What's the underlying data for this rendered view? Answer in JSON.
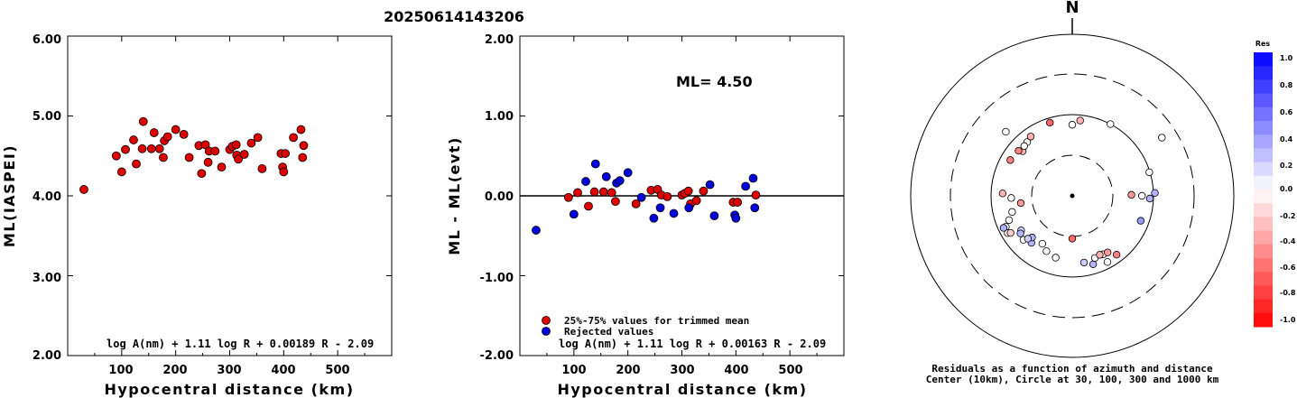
{
  "title": "20250614143206",
  "chart_data": [
    {
      "type": "scatter",
      "name": "ml-vs-distance",
      "xlabel": "Hypocentral distance (km)",
      "ylabel": "ML(IASPEI)",
      "xlim": [
        0,
        600
      ],
      "ylim": [
        2.0,
        6.0
      ],
      "xticks": [
        "100",
        "200",
        "300",
        "400",
        "500"
      ],
      "yticks": [
        "2.00",
        "3.00",
        "4.00",
        "5.00",
        "6.00"
      ],
      "formula": "log A(nm) + 1.11 log R + 0.00189 R - 2.09",
      "points": [
        [
          30,
          4.08
        ],
        [
          90,
          4.5
        ],
        [
          100,
          4.3
        ],
        [
          107,
          4.58
        ],
        [
          122,
          4.7
        ],
        [
          127,
          4.4
        ],
        [
          138,
          4.59
        ],
        [
          140,
          4.93
        ],
        [
          155,
          4.59
        ],
        [
          160,
          4.79
        ],
        [
          170,
          4.59
        ],
        [
          177,
          4.48
        ],
        [
          179,
          4.69
        ],
        [
          185,
          4.74
        ],
        [
          200,
          4.83
        ],
        [
          215,
          4.77
        ],
        [
          225,
          4.48
        ],
        [
          243,
          4.63
        ],
        [
          248,
          4.28
        ],
        [
          255,
          4.64
        ],
        [
          260,
          4.42
        ],
        [
          262,
          4.56
        ],
        [
          273,
          4.56
        ],
        [
          285,
          4.36
        ],
        [
          300,
          4.58
        ],
        [
          305,
          4.62
        ],
        [
          312,
          4.64
        ],
        [
          313,
          4.51
        ],
        [
          316,
          4.46
        ],
        [
          327,
          4.52
        ],
        [
          340,
          4.66
        ],
        [
          352,
          4.73
        ],
        [
          360,
          4.34
        ],
        [
          395,
          4.53
        ],
        [
          398,
          4.36
        ],
        [
          400,
          4.3
        ],
        [
          403,
          4.53
        ],
        [
          418,
          4.73
        ],
        [
          432,
          4.83
        ],
        [
          435,
          4.48
        ],
        [
          437,
          4.63
        ]
      ]
    },
    {
      "type": "scatter",
      "name": "residual-vs-distance",
      "xlabel": "Hypocentral distance (km)",
      "ylabel": "ML - ML(evt)",
      "xlim": [
        0,
        600
      ],
      "ylim": [
        -2.0,
        2.0
      ],
      "xticks": [
        "100",
        "200",
        "300",
        "400",
        "500"
      ],
      "yticks": [
        "-2.00",
        "-1.00",
        "0.00",
        "1.00",
        "2.00"
      ],
      "annotation": "ML= 4.50",
      "formula": "log A(nm) + 1.11 log R + 0.00163 R - 2.09",
      "legend": [
        {
          "label": "25%-75% values for trimmed mean",
          "color": "#dd0000"
        },
        {
          "label": "Rejected values",
          "color": "#0000dd"
        }
      ],
      "series": [
        {
          "color": "#dd0000",
          "points": [
            [
              90,
              -0.02
            ],
            [
              107,
              0.04
            ],
            [
              127,
              -0.13
            ],
            [
              138,
              0.05
            ],
            [
              155,
              0.05
            ],
            [
              170,
              0.04
            ],
            [
              177,
              -0.07
            ],
            [
              215,
              -0.1
            ],
            [
              243,
              0.07
            ],
            [
              255,
              0.08
            ],
            [
              262,
              0.01
            ],
            [
              273,
              -0.01
            ],
            [
              300,
              0.01
            ],
            [
              305,
              0.03
            ],
            [
              312,
              0.06
            ],
            [
              316,
              -0.1
            ],
            [
              327,
              -0.06
            ],
            [
              340,
              0.06
            ],
            [
              395,
              -0.08
            ],
            [
              403,
              -0.08
            ],
            [
              437,
              0.01
            ]
          ]
        },
        {
          "color": "#0000dd",
          "points": [
            [
              30,
              -0.43
            ],
            [
              100,
              -0.23
            ],
            [
              122,
              0.18
            ],
            [
              140,
              0.4
            ],
            [
              160,
              0.24
            ],
            [
              179,
              0.16
            ],
            [
              185,
              0.19
            ],
            [
              200,
              0.29
            ],
            [
              225,
              -0.02
            ],
            [
              248,
              -0.28
            ],
            [
              260,
              -0.15
            ],
            [
              285,
              -0.22
            ],
            [
              313,
              -0.15
            ],
            [
              352,
              0.14
            ],
            [
              360,
              -0.25
            ],
            [
              398,
              -0.24
            ],
            [
              400,
              -0.28
            ],
            [
              418,
              0.12
            ],
            [
              432,
              0.22
            ],
            [
              435,
              -0.15
            ]
          ]
        }
      ]
    },
    {
      "type": "scatter",
      "name": "azimuth-distance-residuals",
      "north_label": "N",
      "caption_line1": "Residuals as a function of azimuth and distance",
      "caption_line2": "Center (10km), Circle at 30, 100, 300 and 1000 km",
      "rings_km": [
        30,
        100,
        300,
        1000
      ],
      "points": [
        [
          312,
          65,
          -0.3
        ],
        [
          310,
          72,
          -0.5
        ],
        [
          300,
          75,
          -0.5
        ],
        [
          320,
          72,
          0.0
        ],
        [
          325,
          77,
          -0.3
        ],
        [
          343,
          87,
          -0.6
        ],
        [
          6,
          85,
          -0.3
        ],
        [
          28,
          100,
          0.0
        ],
        [
          73,
          98,
          0.0
        ],
        [
          57,
          200,
          0.0
        ],
        [
          316,
          70,
          0.0
        ],
        [
          314,
          135,
          0.0
        ],
        [
          0,
          74,
          0.0
        ],
        [
          89,
          52,
          -0.4
        ],
        [
          272,
          71,
          -0.3
        ],
        [
          268,
          55,
          0.0
        ],
        [
          262,
          42,
          -0.4
        ],
        [
          90,
          71,
          0.0
        ],
        [
          92,
          90,
          0.3
        ],
        [
          249,
          67,
          0.0
        ],
        [
          245,
          79,
          0.0
        ],
        [
          240,
          82,
          0.0
        ],
        [
          245,
          85,
          0.3
        ],
        [
          255,
          57,
          0.0
        ],
        [
          239,
          76,
          -0.2
        ],
        [
          236,
          56,
          0.2
        ],
        [
          234,
          60,
          0.3
        ],
        [
          228,
          63,
          0.0
        ],
        [
          221,
          57,
          0.3
        ],
        [
          224,
          50,
          0.3
        ],
        [
          226,
          56,
          0.2
        ],
        [
          212,
          48,
          0.0
        ],
        [
          205,
          55,
          0.0
        ],
        [
          195,
          60,
          0.0
        ],
        [
          163,
          75,
          0.3
        ],
        [
          160,
          64,
          0.0
        ],
        [
          152,
          83,
          0.0
        ],
        [
          170,
          67,
          0.2
        ],
        [
          152,
          64,
          0.0
        ],
        [
          148,
          65,
          -0.4
        ],
        [
          143,
          80,
          -0.5
        ],
        [
          155,
          62,
          -0.3
        ],
        [
          180,
          32,
          -0.6
        ],
        [
          88,
          104,
          0.3
        ],
        [
          110,
          78,
          0.4
        ]
      ]
    }
  ],
  "colorbar": {
    "title": "Res",
    "labels": [
      "1.0",
      "0.8",
      "0.6",
      "0.4",
      "0.2",
      "0.0",
      "-0.2",
      "-0.4",
      "-0.6",
      "-0.8",
      "-1.0"
    ]
  }
}
